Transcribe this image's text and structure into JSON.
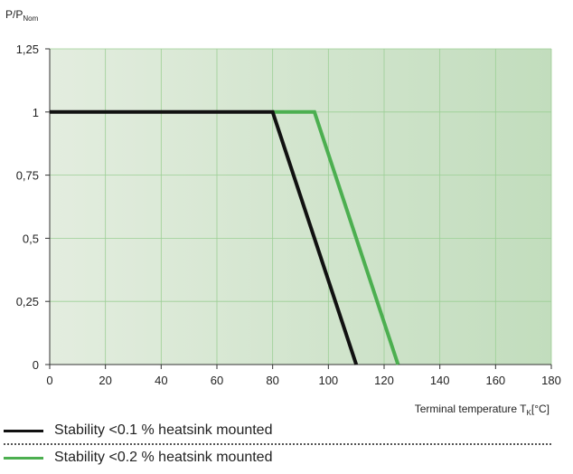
{
  "chart_data": {
    "type": "line",
    "ylabel_main": "P/P",
    "ylabel_sub": "Nom",
    "xlabel_main": "Terminal temperature T",
    "xlabel_sub": "K",
    "xlabel_unit": "[°C]",
    "xlim": [
      0,
      180
    ],
    "ylim": [
      0,
      1.25
    ],
    "x_ticks": [
      0,
      20,
      40,
      60,
      80,
      100,
      120,
      140,
      160,
      180
    ],
    "x_tick_labels": [
      "0",
      "20",
      "40",
      "60",
      "80",
      "100",
      "120",
      "140",
      "160",
      "180"
    ],
    "y_ticks": [
      0,
      0.25,
      0.5,
      0.75,
      1,
      1.25
    ],
    "y_tick_labels": [
      "0",
      "0,25",
      "0,5",
      "0,75",
      "1",
      "1,25"
    ],
    "grid": true,
    "background_gradient": [
      "#e3eddf",
      "#c2ddbd"
    ],
    "grid_color": "#9ccf95",
    "series": [
      {
        "name": "Stability <0.1 % heatsink mounted",
        "color": "#111111",
        "x": [
          0,
          80,
          110
        ],
        "y": [
          1,
          1,
          0
        ]
      },
      {
        "name": "Stability <0.2 % heatsink mounted",
        "color": "#4caf50",
        "x": [
          80,
          95,
          125
        ],
        "y": [
          1,
          1,
          0
        ]
      }
    ]
  },
  "legend": {
    "items": [
      {
        "label": "Stability <0.1 % heatsink mounted",
        "color": "#111111"
      },
      {
        "label": "Stability <0.2 % heatsink mounted",
        "color": "#4caf50"
      }
    ]
  }
}
